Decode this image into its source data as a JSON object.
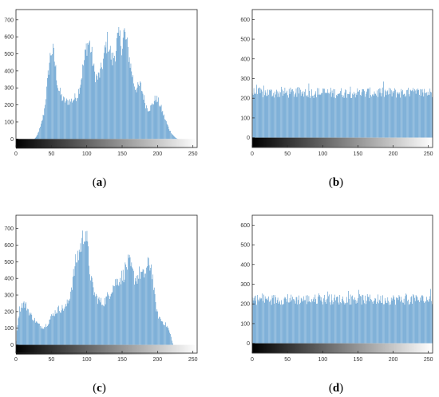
{
  "chart_data": [
    {
      "id": "a",
      "type": "bar",
      "caption": "a",
      "x_ticks": [
        0,
        50,
        100,
        150,
        200,
        250
      ],
      "y_ticks": [
        0,
        100,
        200,
        300,
        400,
        500,
        600,
        700
      ],
      "xlim": [
        0,
        256
      ],
      "ylim": [
        -50,
        760
      ],
      "grid": false,
      "legend": "none",
      "colorbar": "grayscale",
      "bar_color": "#4a90c8",
      "profile": [
        [
          0,
          0
        ],
        [
          26,
          0
        ],
        [
          30,
          20
        ],
        [
          35,
          80
        ],
        [
          40,
          170
        ],
        [
          44,
          330
        ],
        [
          47,
          470
        ],
        [
          50,
          560
        ],
        [
          53,
          545
        ],
        [
          56,
          450
        ],
        [
          60,
          320
        ],
        [
          66,
          250
        ],
        [
          72,
          235
        ],
        [
          80,
          245
        ],
        [
          87,
          275
        ],
        [
          92,
          370
        ],
        [
          96,
          480
        ],
        [
          100,
          590
        ],
        [
          104,
          610
        ],
        [
          107,
          540
        ],
        [
          111,
          420
        ],
        [
          115,
          380
        ],
        [
          120,
          420
        ],
        [
          124,
          510
        ],
        [
          127,
          580
        ],
        [
          130,
          620
        ],
        [
          133,
          560
        ],
        [
          136,
          490
        ],
        [
          140,
          540
        ],
        [
          143,
          620
        ],
        [
          147,
          640
        ],
        [
          150,
          590
        ],
        [
          153,
          680
        ],
        [
          156,
          620
        ],
        [
          160,
          520
        ],
        [
          164,
          420
        ],
        [
          168,
          330
        ],
        [
          172,
          320
        ],
        [
          176,
          340
        ],
        [
          180,
          280
        ],
        [
          184,
          210
        ],
        [
          187,
          190
        ],
        [
          191,
          200
        ],
        [
          194,
          230
        ],
        [
          198,
          260
        ],
        [
          201,
          240
        ],
        [
          205,
          200
        ],
        [
          209,
          150
        ],
        [
          213,
          100
        ],
        [
          217,
          60
        ],
        [
          221,
          30
        ],
        [
          225,
          10
        ],
        [
          229,
          0
        ],
        [
          256,
          0
        ]
      ]
    },
    {
      "id": "b",
      "type": "bar",
      "caption": "b",
      "x_ticks": [
        0,
        50,
        100,
        150,
        200,
        250
      ],
      "y_ticks": [
        0,
        100,
        200,
        300,
        400,
        500,
        600
      ],
      "xlim": [
        0,
        256
      ],
      "ylim": [
        -50,
        650
      ],
      "grid": false,
      "legend": "none",
      "colorbar": "grayscale",
      "bar_color": "#4a90c8",
      "profile": [
        [
          0,
          255
        ],
        [
          256,
          255
        ]
      ]
    },
    {
      "id": "c",
      "type": "bar",
      "caption": "c",
      "x_ticks": [
        0,
        50,
        100,
        150,
        200,
        250
      ],
      "y_ticks": [
        0,
        100,
        200,
        300,
        400,
        500,
        600,
        700
      ],
      "xlim": [
        0,
        256
      ],
      "ylim": [
        -50,
        780
      ],
      "grid": false,
      "legend": "none",
      "colorbar": "grayscale",
      "bar_color": "#4a90c8",
      "profile": [
        [
          0,
          0
        ],
        [
          3,
          170
        ],
        [
          6,
          240
        ],
        [
          10,
          270
        ],
        [
          15,
          250
        ],
        [
          20,
          200
        ],
        [
          25,
          170
        ],
        [
          30,
          140
        ],
        [
          35,
          120
        ],
        [
          40,
          115
        ],
        [
          45,
          140
        ],
        [
          50,
          180
        ],
        [
          55,
          210
        ],
        [
          60,
          230
        ],
        [
          65,
          235
        ],
        [
          70,
          240
        ],
        [
          75,
          290
        ],
        [
          80,
          410
        ],
        [
          85,
          540
        ],
        [
          90,
          610
        ],
        [
          95,
          690
        ],
        [
          98,
          760
        ],
        [
          101,
          650
        ],
        [
          104,
          510
        ],
        [
          107,
          400
        ],
        [
          112,
          320
        ],
        [
          117,
          290
        ],
        [
          122,
          270
        ],
        [
          127,
          290
        ],
        [
          132,
          330
        ],
        [
          137,
          380
        ],
        [
          142,
          410
        ],
        [
          147,
          430
        ],
        [
          152,
          450
        ],
        [
          156,
          510
        ],
        [
          160,
          530
        ],
        [
          164,
          480
        ],
        [
          168,
          430
        ],
        [
          172,
          440
        ],
        [
          176,
          470
        ],
        [
          180,
          440
        ],
        [
          184,
          480
        ],
        [
          188,
          530
        ],
        [
          192,
          500
        ],
        [
          196,
          310
        ],
        [
          200,
          200
        ],
        [
          205,
          160
        ],
        [
          210,
          140
        ],
        [
          215,
          110
        ],
        [
          219,
          60
        ],
        [
          222,
          0
        ],
        [
          256,
          0
        ]
      ]
    },
    {
      "id": "d",
      "type": "bar",
      "caption": "d",
      "x_ticks": [
        0,
        50,
        100,
        150,
        200,
        250
      ],
      "y_ticks": [
        0,
        100,
        200,
        300,
        400,
        500,
        600
      ],
      "xlim": [
        0,
        256
      ],
      "ylim": [
        -50,
        650
      ],
      "grid": false,
      "legend": "none",
      "colorbar": "grayscale",
      "bar_color": "#4a90c8",
      "profile": [
        [
          0,
          250
        ],
        [
          256,
          250
        ]
      ]
    }
  ]
}
